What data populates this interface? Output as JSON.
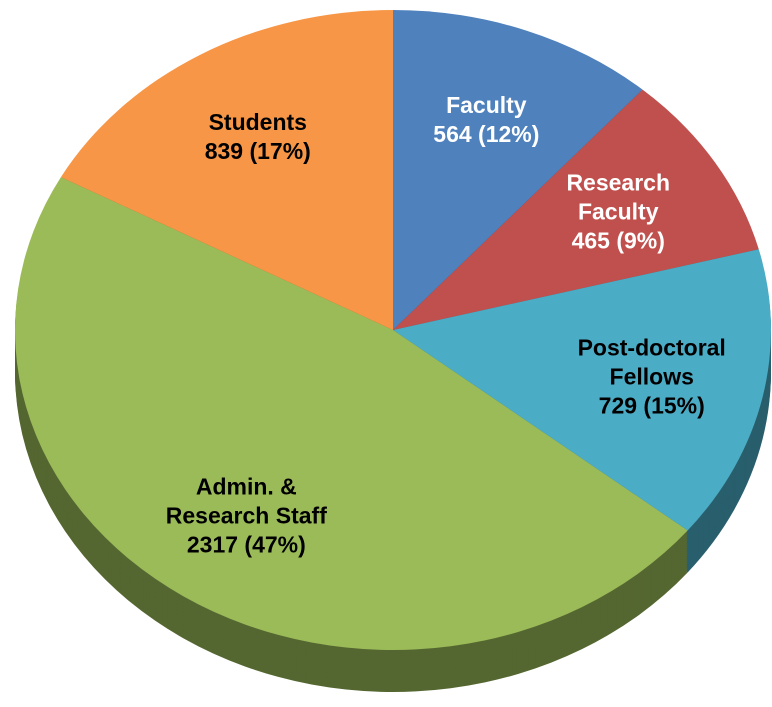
{
  "chart_data": {
    "type": "pie",
    "categories": [
      "Faculty",
      "Research Faculty",
      "Post-doctoral Fellows",
      "Admin. & Research Staff",
      "Students"
    ],
    "values": [
      564,
      465,
      729,
      2317,
      839
    ],
    "value_labels": [
      "564 (12%)",
      "465 (9%)",
      "729 (15%)",
      "2317 (47%)",
      "839 (17%)"
    ],
    "colors": [
      "#4f81bd",
      "#c0504d",
      "#4bacc6",
      "#9bbb59",
      "#f79646"
    ],
    "label_colors": [
      "#ffffff",
      "#ffffff",
      "#000000",
      "#000000",
      "#000000"
    ]
  }
}
